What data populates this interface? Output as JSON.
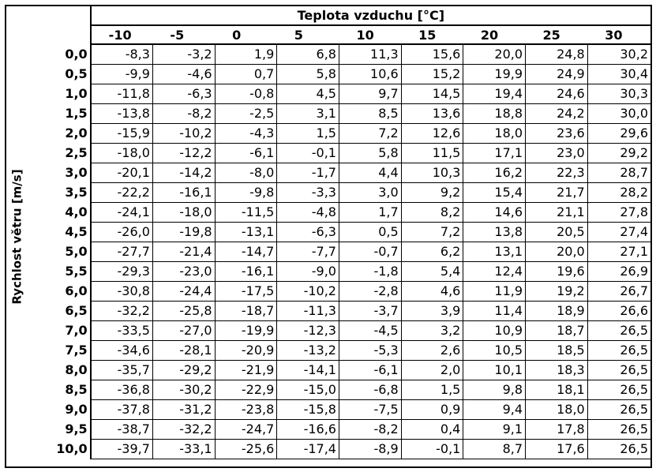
{
  "table": {
    "title": "Teplota vzduchu [°C]",
    "row_axis_label": "Rychlost větru [m/s]",
    "column_headers": [
      "-10",
      "-5",
      "0",
      "5",
      "10",
      "15",
      "20",
      "25",
      "30"
    ],
    "rows": [
      {
        "label": "0,0",
        "cells": [
          "-8,3",
          "-3,2",
          "1,9",
          "6,8",
          "11,3",
          "15,6",
          "20,0",
          "24,8",
          "30,2"
        ]
      },
      {
        "label": "0,5",
        "cells": [
          "-9,9",
          "-4,6",
          "0,7",
          "5,8",
          "10,6",
          "15,2",
          "19,9",
          "24,9",
          "30,4"
        ]
      },
      {
        "label": "1,0",
        "cells": [
          "-11,8",
          "-6,3",
          "-0,8",
          "4,5",
          "9,7",
          "14,5",
          "19,4",
          "24,6",
          "30,3"
        ]
      },
      {
        "label": "1,5",
        "cells": [
          "-13,8",
          "-8,2",
          "-2,5",
          "3,1",
          "8,5",
          "13,6",
          "18,8",
          "24,2",
          "30,0"
        ]
      },
      {
        "label": "2,0",
        "cells": [
          "-15,9",
          "-10,2",
          "-4,3",
          "1,5",
          "7,2",
          "12,6",
          "18,0",
          "23,6",
          "29,6"
        ]
      },
      {
        "label": "2,5",
        "cells": [
          "-18,0",
          "-12,2",
          "-6,1",
          "-0,1",
          "5,8",
          "11,5",
          "17,1",
          "23,0",
          "29,2"
        ]
      },
      {
        "label": "3,0",
        "cells": [
          "-20,1",
          "-14,2",
          "-8,0",
          "-1,7",
          "4,4",
          "10,3",
          "16,2",
          "22,3",
          "28,7"
        ]
      },
      {
        "label": "3,5",
        "cells": [
          "-22,2",
          "-16,1",
          "-9,8",
          "-3,3",
          "3,0",
          "9,2",
          "15,4",
          "21,7",
          "28,2"
        ]
      },
      {
        "label": "4,0",
        "cells": [
          "-24,1",
          "-18,0",
          "-11,5",
          "-4,8",
          "1,7",
          "8,2",
          "14,6",
          "21,1",
          "27,8"
        ]
      },
      {
        "label": "4,5",
        "cells": [
          "-26,0",
          "-19,8",
          "-13,1",
          "-6,3",
          "0,5",
          "7,2",
          "13,8",
          "20,5",
          "27,4"
        ]
      },
      {
        "label": "5,0",
        "cells": [
          "-27,7",
          "-21,4",
          "-14,7",
          "-7,7",
          "-0,7",
          "6,2",
          "13,1",
          "20,0",
          "27,1"
        ]
      },
      {
        "label": "5,5",
        "cells": [
          "-29,3",
          "-23,0",
          "-16,1",
          "-9,0",
          "-1,8",
          "5,4",
          "12,4",
          "19,6",
          "26,9"
        ]
      },
      {
        "label": "6,0",
        "cells": [
          "-30,8",
          "-24,4",
          "-17,5",
          "-10,2",
          "-2,8",
          "4,6",
          "11,9",
          "19,2",
          "26,7"
        ]
      },
      {
        "label": "6,5",
        "cells": [
          "-32,2",
          "-25,8",
          "-18,7",
          "-11,3",
          "-3,7",
          "3,9",
          "11,4",
          "18,9",
          "26,6"
        ]
      },
      {
        "label": "7,0",
        "cells": [
          "-33,5",
          "-27,0",
          "-19,9",
          "-12,3",
          "-4,5",
          "3,2",
          "10,9",
          "18,7",
          "26,5"
        ]
      },
      {
        "label": "7,5",
        "cells": [
          "-34,6",
          "-28,1",
          "-20,9",
          "-13,2",
          "-5,3",
          "2,6",
          "10,5",
          "18,5",
          "26,5"
        ]
      },
      {
        "label": "8,0",
        "cells": [
          "-35,7",
          "-29,2",
          "-21,9",
          "-14,1",
          "-6,1",
          "2,0",
          "10,1",
          "18,3",
          "26,5"
        ]
      },
      {
        "label": "8,5",
        "cells": [
          "-36,8",
          "-30,2",
          "-22,9",
          "-15,0",
          "-6,8",
          "1,5",
          "9,8",
          "18,1",
          "26,5"
        ]
      },
      {
        "label": "9,0",
        "cells": [
          "-37,8",
          "-31,2",
          "-23,8",
          "-15,8",
          "-7,5",
          "0,9",
          "9,4",
          "18,0",
          "26,5"
        ]
      },
      {
        "label": "9,5",
        "cells": [
          "-38,7",
          "-32,2",
          "-24,7",
          "-16,6",
          "-8,2",
          "0,4",
          "9,1",
          "17,8",
          "26,5"
        ]
      },
      {
        "label": "10,0",
        "cells": [
          "-39,7",
          "-33,1",
          "-25,6",
          "-17,4",
          "-8,9",
          "-0,1",
          "8,7",
          "17,6",
          "26,5"
        ]
      }
    ]
  }
}
